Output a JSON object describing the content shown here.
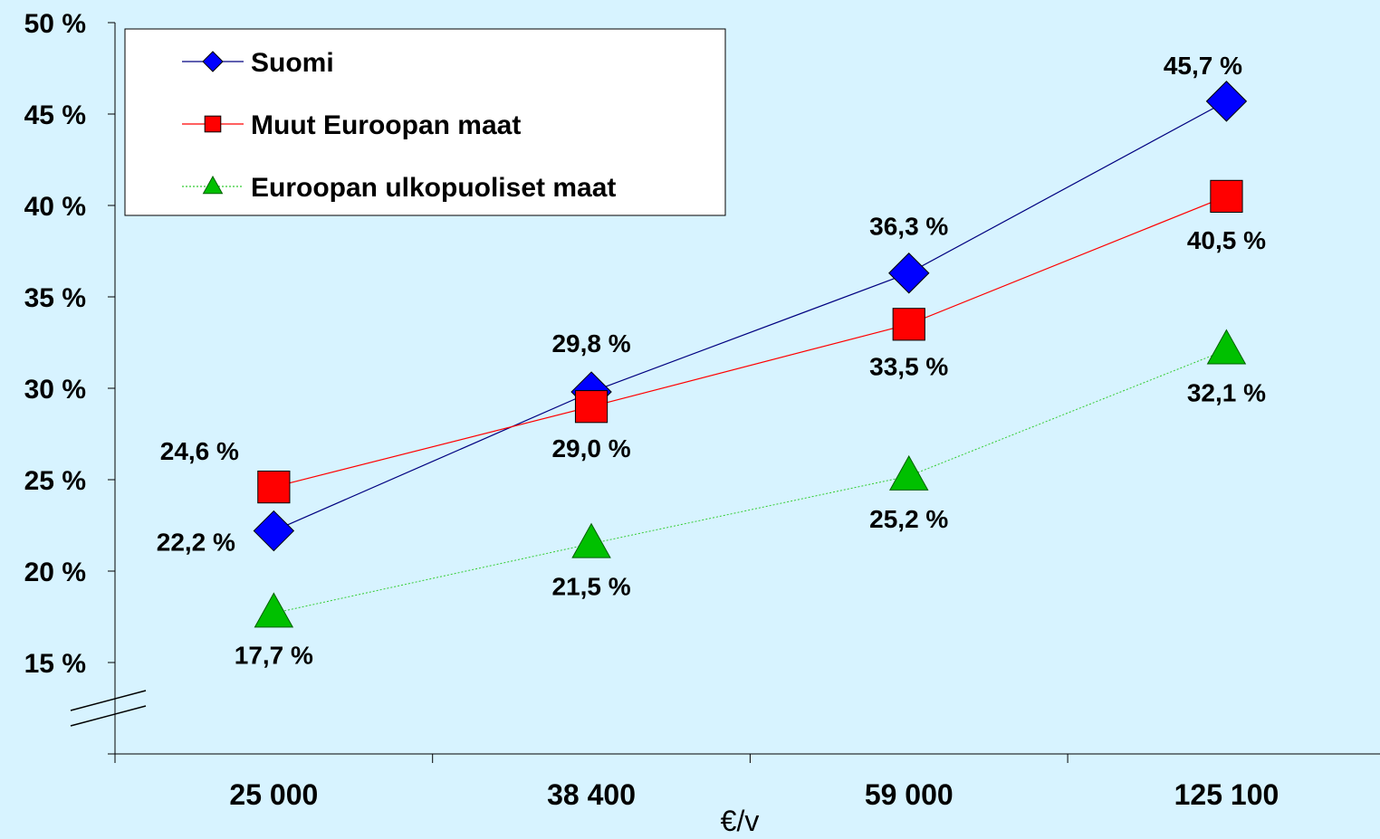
{
  "colors": {
    "background": "#d7f3ff",
    "axis": "#000000",
    "legend_bg": "#ffffff"
  },
  "chart_data": {
    "type": "line",
    "title": "",
    "xlabel": "€/v",
    "ylabel": "",
    "categories": [
      "25 000",
      "38 400",
      "59 000",
      "125 100"
    ],
    "ylim": [
      10,
      50
    ],
    "yticks": [
      15,
      20,
      25,
      30,
      35,
      40,
      45,
      50
    ],
    "ytick_labels": [
      "15 %",
      "20 %",
      "25 %",
      "30 %",
      "35 %",
      "40 %",
      "45 %",
      "50 %"
    ],
    "y_axis_break": true,
    "grid": false,
    "legend": "top-left",
    "series": [
      {
        "name": "Suomi",
        "marker": "diamond",
        "color": "#0000ff",
        "line_color": "#000080",
        "values": [
          22.2,
          29.8,
          36.3,
          45.7
        ],
        "labels": [
          "22,2 %",
          "29,8 %",
          "36,3 %",
          "45,7 %"
        ]
      },
      {
        "name": "Muut Euroopan maat",
        "marker": "square",
        "color": "#ff0000",
        "line_color": "#ff0000",
        "values": [
          24.6,
          29.0,
          33.5,
          40.5
        ],
        "labels": [
          "24,6 %",
          "29,0 %",
          "33,5 %",
          "40,5 %"
        ]
      },
      {
        "name": "Euroopan ulkopuoliset maat",
        "marker": "triangle",
        "color": "#00c000",
        "line_color": "#33cc33",
        "values": [
          17.7,
          21.5,
          25.2,
          32.1
        ],
        "labels": [
          "17,7 %",
          "21,5 %",
          "25,2 %",
          "32,1 %"
        ]
      }
    ]
  }
}
